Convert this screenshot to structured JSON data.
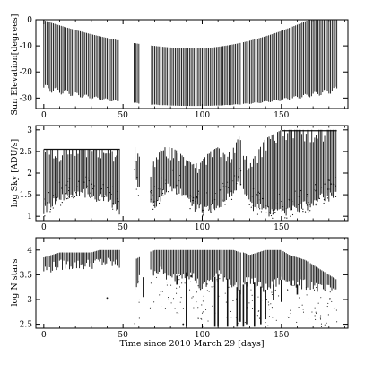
{
  "chart_data": [
    {
      "type": "line",
      "ylabel": "Sun Elevation[degrees]",
      "xlim": [
        -5,
        192
      ],
      "ylim": [
        -34,
        0
      ],
      "x_ticks": [
        0,
        50,
        100,
        150
      ],
      "y_ticks": [
        0,
        -10,
        -20,
        -30
      ],
      "segments": [
        {
          "x": [
            0,
            47
          ],
          "night_range": [
            [
              -12,
              -26
            ],
            [
              -10,
              -28
            ]
          ],
          "shape": "bowl",
          "minimum_at": 95,
          "minimum": -33
        },
        {
          "x": [
            57,
            60
          ],
          "night_range": [
            [
              -16,
              -31
            ],
            [
              -15,
              -32
            ]
          ],
          "shape": "bowl",
          "minimum_at": 95,
          "minimum": -33
        },
        {
          "x": [
            68,
            124
          ],
          "night_range": [
            [
              -13,
              -33
            ],
            [
              -12,
              -32
            ]
          ],
          "shape": "bowl",
          "minimum_at": 95,
          "minimum": -33
        },
        {
          "x": [
            126,
            185
          ],
          "night_range": [
            [
              -15,
              -31
            ],
            [
              0,
              -7
            ]
          ],
          "shape": "bowl",
          "minimum_at": 95,
          "minimum": -33
        }
      ]
    },
    {
      "type": "scatter",
      "ylabel": "log Sky [ADU/s]",
      "xlim": [
        -5,
        192
      ],
      "ylim": [
        0.9,
        3.1
      ],
      "x_ticks": [
        0,
        50,
        100,
        150
      ],
      "y_ticks": [
        1,
        1.5,
        2,
        2.5,
        3
      ],
      "saturation_level": 2.55,
      "envelope_x": [
        0,
        5,
        10,
        15,
        20,
        25,
        30,
        35,
        40,
        45,
        48,
        57,
        60,
        63,
        66,
        70,
        75,
        80,
        85,
        90,
        95,
        100,
        105,
        110,
        115,
        120,
        124,
        126,
        130,
        135,
        140,
        145,
        150,
        155,
        160,
        165,
        170,
        175,
        180,
        185
      ],
      "envelope_top": [
        2.55,
        2.55,
        2.55,
        2.55,
        2.55,
        2.55,
        2.55,
        2.55,
        2.55,
        2.55,
        2.55,
        2.65,
        2.4,
        2.2,
        2.1,
        2.3,
        2.6,
        2.6,
        2.5,
        2.3,
        2.2,
        2.3,
        2.5,
        2.6,
        2.4,
        2.6,
        2.9,
        2.55,
        2.2,
        2.5,
        2.8,
        2.9,
        3.0,
        3.0,
        3.0,
        3.0,
        3.0,
        3.0,
        3.0,
        3.0
      ],
      "envelope_bottom": [
        1.15,
        1.3,
        1.4,
        1.5,
        1.55,
        1.55,
        1.5,
        1.45,
        1.35,
        1.25,
        1.15,
        2.0,
        1.6,
        1.5,
        1.3,
        1.3,
        1.5,
        1.7,
        1.6,
        1.4,
        1.2,
        1.15,
        1.2,
        1.3,
        1.4,
        1.6,
        1.8,
        1.7,
        1.3,
        1.2,
        1.15,
        1.1,
        1.1,
        1.15,
        1.2,
        1.25,
        1.3,
        1.4,
        1.45,
        1.5
      ]
    },
    {
      "type": "scatter",
      "xlabel": "Time since 2010 March 29 [days]",
      "ylabel": "log N stars",
      "xlim": [
        -5,
        192
      ],
      "ylim": [
        2.42,
        4.25
      ],
      "x_ticks": [
        0,
        50,
        100,
        150
      ],
      "y_ticks": [
        2.5,
        3,
        3.5,
        4
      ],
      "envelope_x": [
        0,
        5,
        10,
        15,
        20,
        25,
        30,
        35,
        40,
        45,
        48,
        57,
        60,
        63,
        66,
        70,
        75,
        80,
        85,
        90,
        95,
        100,
        105,
        110,
        115,
        120,
        124,
        126,
        130,
        135,
        140,
        145,
        150,
        155,
        160,
        165,
        170,
        175,
        180,
        185
      ],
      "envelope_top": [
        3.85,
        3.9,
        3.95,
        3.95,
        3.95,
        3.95,
        3.95,
        4.0,
        4.0,
        4.0,
        4.0,
        3.8,
        3.85,
        3.9,
        3.95,
        4.0,
        4.0,
        4.0,
        4.0,
        4.0,
        4.0,
        4.0,
        4.0,
        4.0,
        4.0,
        4.0,
        3.95,
        3.95,
        3.9,
        3.95,
        4.0,
        4.0,
        4.0,
        3.9,
        3.85,
        3.8,
        3.7,
        3.6,
        3.5,
        3.4
      ],
      "envelope_bottom": [
        3.6,
        3.65,
        3.7,
        3.7,
        3.7,
        3.7,
        3.72,
        3.75,
        3.75,
        3.72,
        3.7,
        3.2,
        3.4,
        3.45,
        3.5,
        3.6,
        3.55,
        3.4,
        3.5,
        3.55,
        3.45,
        3.2,
        3.4,
        3.5,
        3.45,
        3.3,
        3.2,
        3.3,
        3.4,
        3.3,
        3.2,
        3.3,
        3.4,
        3.4,
        3.3,
        3.3,
        3.3,
        3.2,
        3.2,
        3.2
      ],
      "dips": [
        {
          "x": 63,
          "y": 3.05
        },
        {
          "x": 80,
          "y": 3.4
        },
        {
          "x": 84,
          "y": 3.3
        },
        {
          "x": 90,
          "y": 2.45
        },
        {
          "x": 93,
          "y": 3.45
        },
        {
          "x": 103,
          "y": 3.3
        },
        {
          "x": 108,
          "y": 2.45
        },
        {
          "x": 110,
          "y": 2.45
        },
        {
          "x": 116,
          "y": 2.45
        },
        {
          "x": 122,
          "y": 2.45
        },
        {
          "x": 124,
          "y": 2.55
        },
        {
          "x": 126,
          "y": 2.45
        },
        {
          "x": 128,
          "y": 2.5
        },
        {
          "x": 133,
          "y": 2.45
        },
        {
          "x": 137,
          "y": 2.5
        },
        {
          "x": 140,
          "y": 2.6
        },
        {
          "x": 145,
          "y": 3.0
        },
        {
          "x": 150,
          "y": 2.95
        },
        {
          "x": 160,
          "y": 3.1
        }
      ],
      "outliers": [
        {
          "x": 40,
          "y": 3.03
        },
        {
          "x": 88,
          "y": 2.5
        }
      ]
    }
  ]
}
